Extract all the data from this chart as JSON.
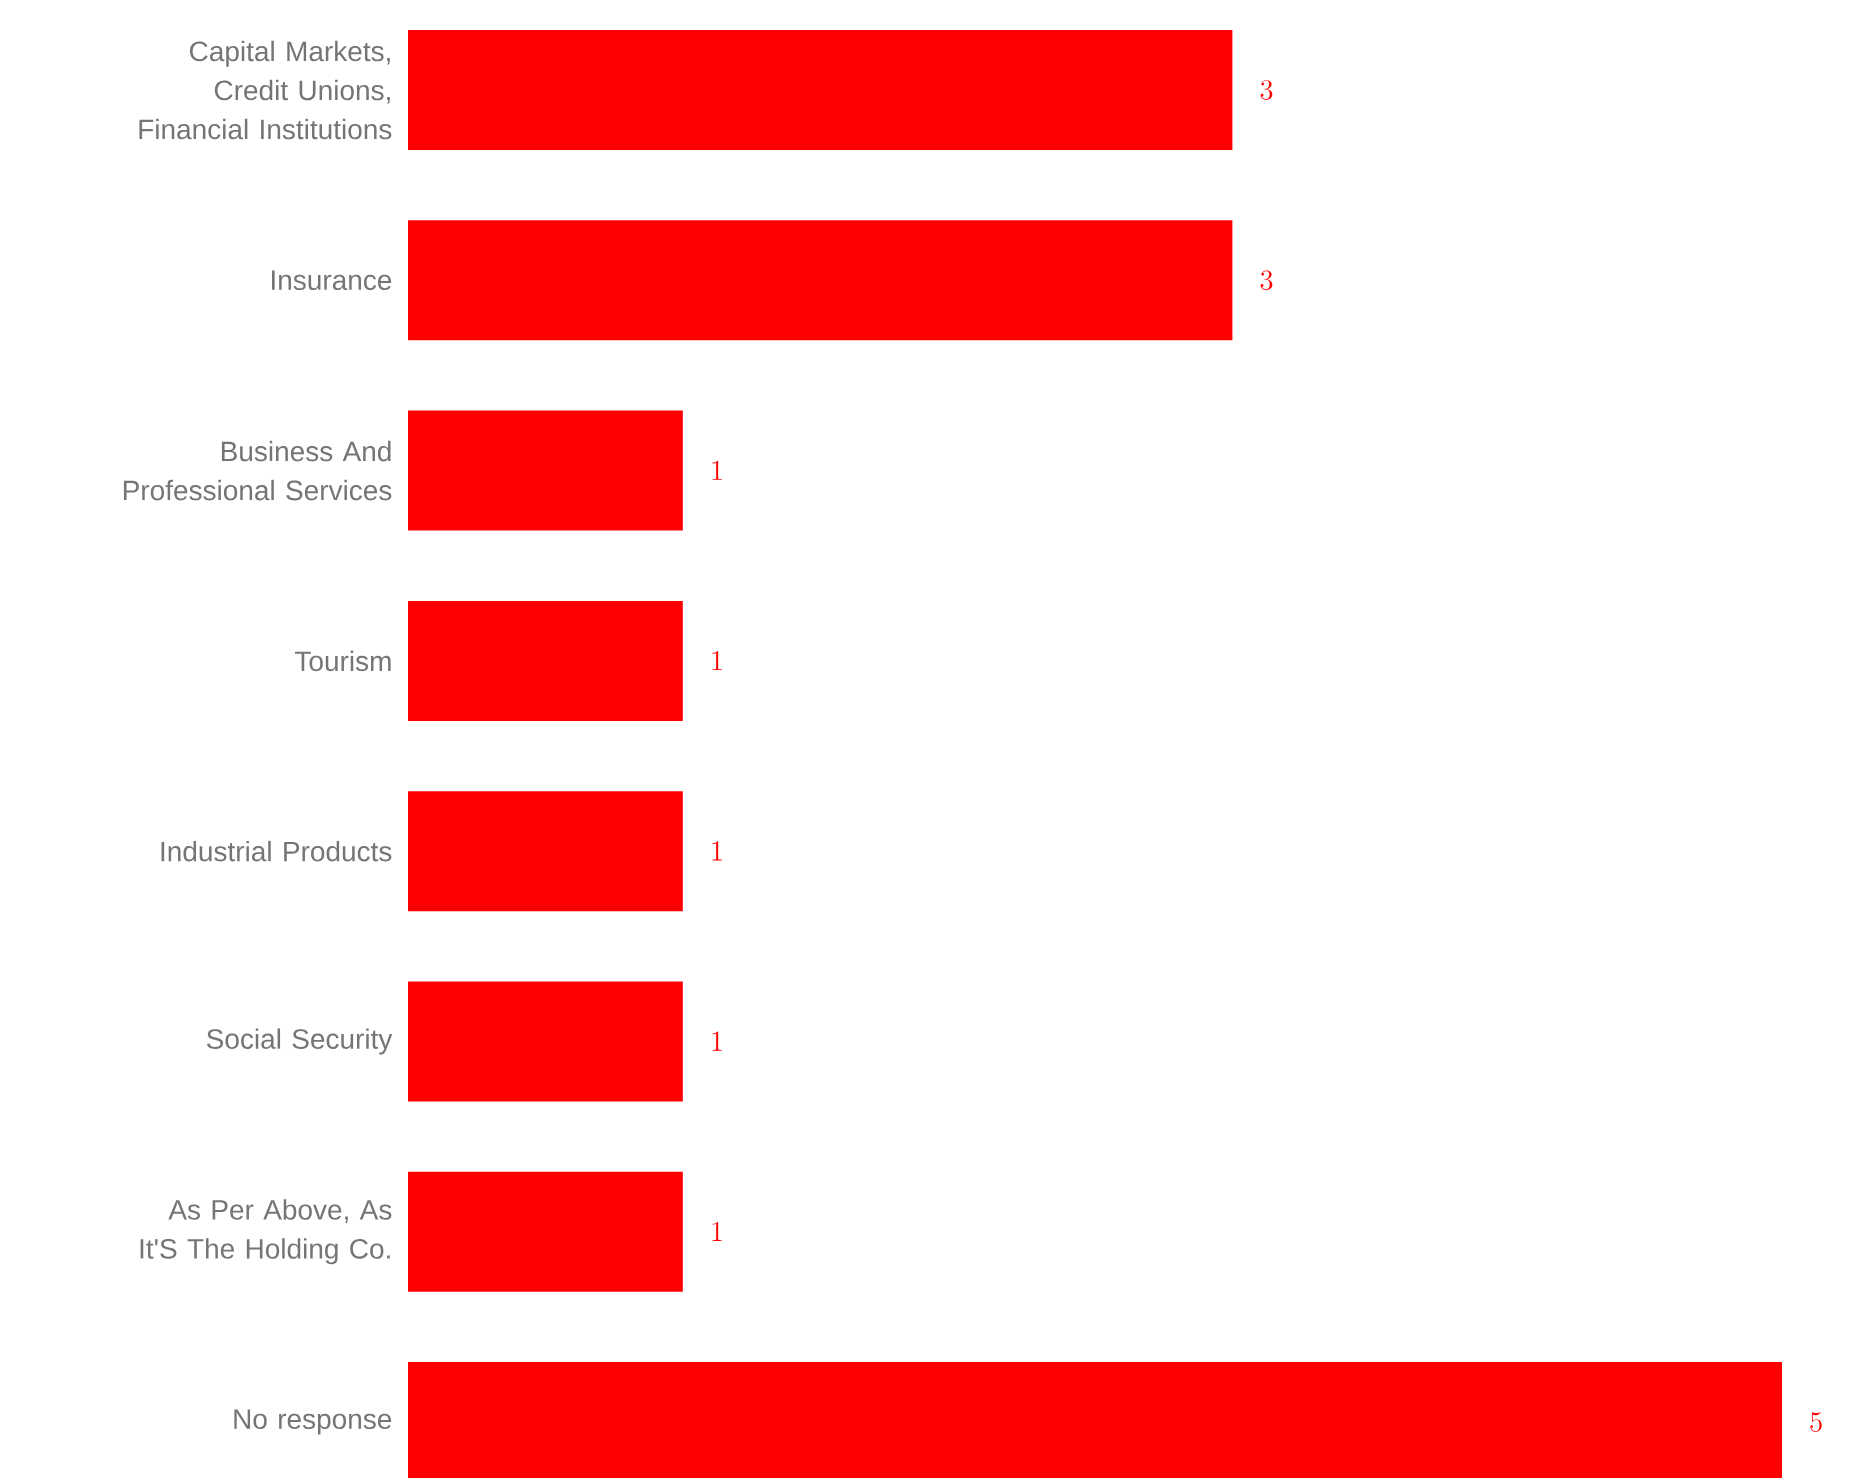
{
  "chart_data": {
    "type": "bar",
    "orientation": "horizontal",
    "categories": [
      "Capital Markets, Credit Unions, Financial Institutions",
      "Insurance",
      "Business And Professional Services",
      "Tourism",
      "Industrial Products",
      "Social Security",
      "As Per Above, As It'S  The Holding Co.",
      "No response"
    ],
    "values": [
      3,
      3,
      1,
      1,
      1,
      1,
      1,
      5
    ],
    "color": "#ff0000",
    "xlim": [
      0,
      5
    ],
    "data_labels": true,
    "tick_labels": "y"
  }
}
